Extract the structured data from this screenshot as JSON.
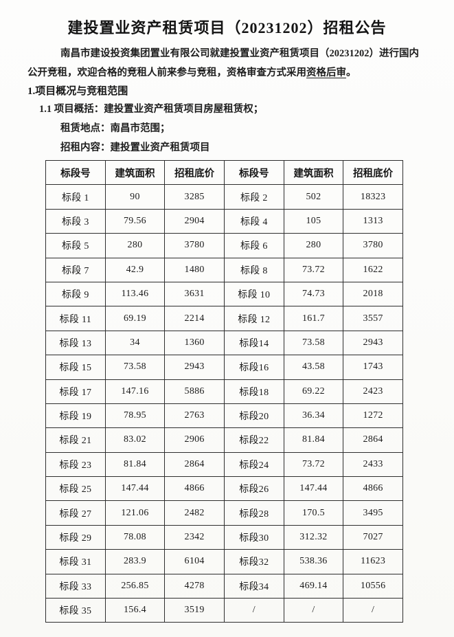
{
  "document": {
    "title": "建投置业资产租赁项目（20231202）招租公告",
    "intro": {
      "line1": "南昌市建设投资集团置业有限公司就建投置业资产租赁项目（20231202）进行国内",
      "line2_prefix": "公开竞租，欢迎合格的竞租人前来参与竞租，资格审查方式采用",
      "line2_underlined": "资格后审",
      "line2_suffix": "。"
    },
    "section_heading": "1.项目概况与竞租范围",
    "clause_overview": "1.1 项目概括：建投置业资产租赁项目房屋租赁权；",
    "clause_location": "租赁地点：南昌市范围；",
    "clause_content": "招租内容：建投置业资产租赁项目"
  },
  "table": {
    "headers": [
      "标段号",
      "建筑面积",
      "招租底价",
      "标段号",
      "建筑面积",
      "招租底价"
    ],
    "rows": [
      [
        "标段 1",
        "90",
        "3285",
        "标段 2",
        "502",
        "18323"
      ],
      [
        "标段 3",
        "79.56",
        "2904",
        "标段 4",
        "105",
        "1313"
      ],
      [
        "标段 5",
        "280",
        "3780",
        "标段 6",
        "280",
        "3780"
      ],
      [
        "标段 7",
        "42.9",
        "1480",
        "标段 8",
        "73.72",
        "1622"
      ],
      [
        "标段 9",
        "113.46",
        "3631",
        "标段 10",
        "74.73",
        "2018"
      ],
      [
        "标段 11",
        "69.19",
        "2214",
        "标段 12",
        "161.7",
        "3557"
      ],
      [
        "标段 13",
        "34",
        "1360",
        "标段14",
        "73.58",
        "2943"
      ],
      [
        "标段 15",
        "73.58",
        "2943",
        "标段16",
        "43.58",
        "1743"
      ],
      [
        "标段 17",
        "147.16",
        "5886",
        "标段18",
        "69.22",
        "2423"
      ],
      [
        "标段 19",
        "78.95",
        "2763",
        "标段20",
        "36.34",
        "1272"
      ],
      [
        "标段 21",
        "83.02",
        "2906",
        "标段22",
        "81.84",
        "2864"
      ],
      [
        "标段 23",
        "81.84",
        "2864",
        "标段24",
        "73.72",
        "2433"
      ],
      [
        "标段 25",
        "147.44",
        "4866",
        "标段26",
        "147.44",
        "4866"
      ],
      [
        "标段 27",
        "121.06",
        "2482",
        "标段28",
        "170.5",
        "3495"
      ],
      [
        "标段 29",
        "78.08",
        "2342",
        "标段30",
        "312.32",
        "7027"
      ],
      [
        "标段 31",
        "283.9",
        "6104",
        "标段32",
        "538.36",
        "11623"
      ],
      [
        "标段 33",
        "256.85",
        "4278",
        "标段34",
        "469.14",
        "10556"
      ],
      [
        "标段 35",
        "156.4",
        "3519",
        "/",
        "/",
        "/"
      ]
    ]
  }
}
